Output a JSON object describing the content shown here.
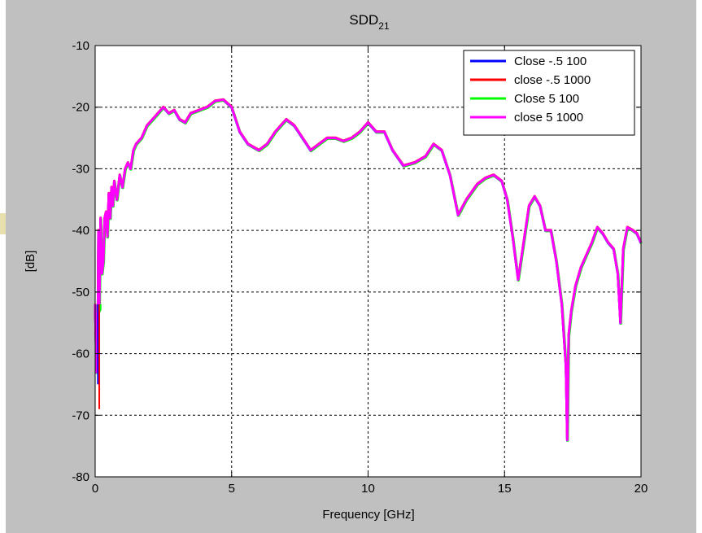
{
  "chart_data": {
    "type": "line",
    "title": "SDD",
    "title_subscript": "21",
    "xlabel": "Frequency [GHz]",
    "ylabel": "[dB]",
    "xlim": [
      0,
      20
    ],
    "ylim": [
      -80,
      -10
    ],
    "xticks": [
      0,
      5,
      10,
      15,
      20
    ],
    "yticks": [
      -80,
      -70,
      -60,
      -50,
      -40,
      -30,
      -20,
      -10
    ],
    "xtick_labels": [
      "0",
      "5",
      "10",
      "15",
      "20"
    ],
    "ytick_labels": [
      "-80",
      "-70",
      "-60",
      "-50",
      "-40",
      "-30",
      "-20",
      "-10"
    ],
    "grid": true,
    "legend_position": "top-right",
    "series": [
      {
        "name": "Close -.5 100",
        "color": "#0000ff"
      },
      {
        "name": "close -.5 1000",
        "color": "#ff0000"
      },
      {
        "name": "Close 5 100",
        "color": "#00ff00"
      },
      {
        "name": "close 5 1000",
        "color": "#ff00ff"
      }
    ],
    "x": [
      0.0,
      0.05,
      0.1,
      0.12,
      0.15,
      0.2,
      0.25,
      0.3,
      0.35,
      0.4,
      0.45,
      0.5,
      0.55,
      0.6,
      0.65,
      0.7,
      0.8,
      0.9,
      1.0,
      1.1,
      1.2,
      1.3,
      1.4,
      1.5,
      1.7,
      1.9,
      2.1,
      2.3,
      2.5,
      2.7,
      2.9,
      3.1,
      3.3,
      3.5,
      3.8,
      4.1,
      4.4,
      4.7,
      5.0,
      5.3,
      5.6,
      6.0,
      6.3,
      6.6,
      7.0,
      7.3,
      7.6,
      7.9,
      8.2,
      8.5,
      8.8,
      9.1,
      9.4,
      9.7,
      10.0,
      10.3,
      10.6,
      10.9,
      11.3,
      11.7,
      12.1,
      12.4,
      12.7,
      13.0,
      13.3,
      13.6,
      14.0,
      14.3,
      14.6,
      14.9,
      15.1,
      15.3,
      15.5,
      15.7,
      15.9,
      16.1,
      16.3,
      16.5,
      16.7,
      16.9,
      17.1,
      17.25,
      17.3,
      17.35,
      17.45,
      17.6,
      17.8,
      18.0,
      18.2,
      18.4,
      18.6,
      18.8,
      19.0,
      19.15,
      19.25,
      19.35,
      19.5,
      19.7,
      19.85,
      20.0
    ],
    "y": [
      -52,
      -63,
      -53,
      -40,
      -53,
      -38,
      -47,
      -45,
      -38,
      -37,
      -41,
      -34,
      -38,
      -33,
      -36,
      -32,
      -35,
      -31,
      -33,
      -30,
      -29,
      -30,
      -27,
      -26,
      -25,
      -23,
      -22,
      -21,
      -20,
      -21,
      -20.5,
      -22,
      -22.5,
      -21,
      -20.5,
      -20,
      -19,
      -18.8,
      -20,
      -24,
      -26,
      -27,
      -26,
      -24,
      -22,
      -23,
      -25,
      -27,
      -26,
      -25,
      -25,
      -25.5,
      -25,
      -24,
      -22.5,
      -24,
      -24,
      -27,
      -29.5,
      -29,
      -28,
      -26,
      -27,
      -31,
      -37.5,
      -35,
      -32.5,
      -31.5,
      -31,
      -32,
      -35,
      -41,
      -48,
      -42,
      -36,
      -34.5,
      -36,
      -40,
      -40,
      -45,
      -52,
      -62,
      -74,
      -57,
      -53,
      -49,
      -46,
      -44,
      -42,
      -39.5,
      -40.5,
      -42,
      -43,
      -47,
      -55,
      -43,
      -39.5,
      -40,
      -40.5,
      -42
    ],
    "y_low_freq_dips": [
      [
        0.1,
        -65
      ],
      [
        0.15,
        -69
      ],
      [
        0.2,
        -53
      ]
    ]
  },
  "colors": {
    "figure_background": "#c0c0c0",
    "axes_background": "#ffffff",
    "grid": "#000000"
  }
}
